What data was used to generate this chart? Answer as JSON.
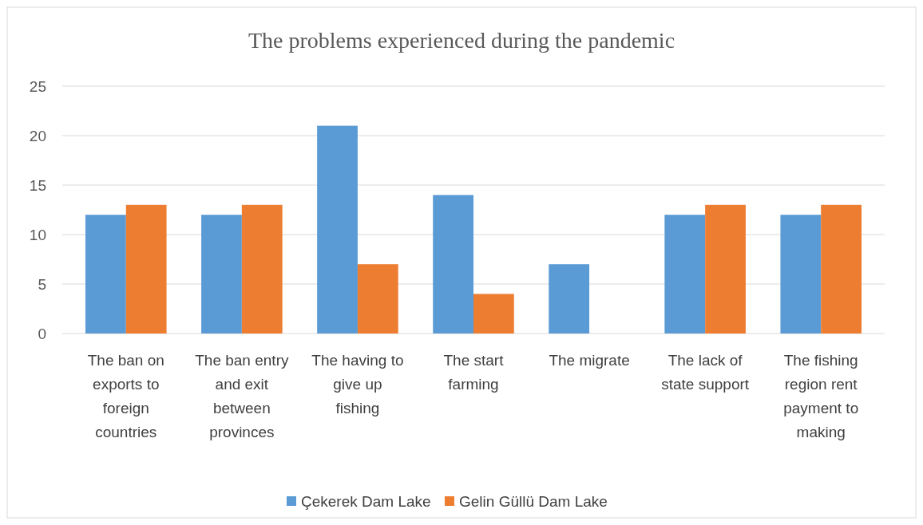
{
  "chart_data": {
    "type": "bar",
    "title": "The problems experienced during the pandemic",
    "categories": [
      "The ban on exports to foreign countries",
      "The ban entry and exit between provinces",
      "The having to give up fishing",
      "The start farming",
      "The migrate",
      "The lack of state support",
      "The fishing region rent payment to making"
    ],
    "series": [
      {
        "name": "Çekerek Dam Lake",
        "color": "#5b9bd5",
        "values": [
          12,
          12,
          21,
          14,
          7,
          12,
          12
        ]
      },
      {
        "name": "Gelin Güllü Dam Lake",
        "color": "#ed7d31",
        "values": [
          13,
          13,
          7,
          4,
          0,
          13,
          13
        ]
      }
    ],
    "ylim": [
      0,
      25
    ],
    "yticks": [
      0,
      5,
      10,
      15,
      20,
      25
    ],
    "grid": "y",
    "legend": "bottom"
  }
}
